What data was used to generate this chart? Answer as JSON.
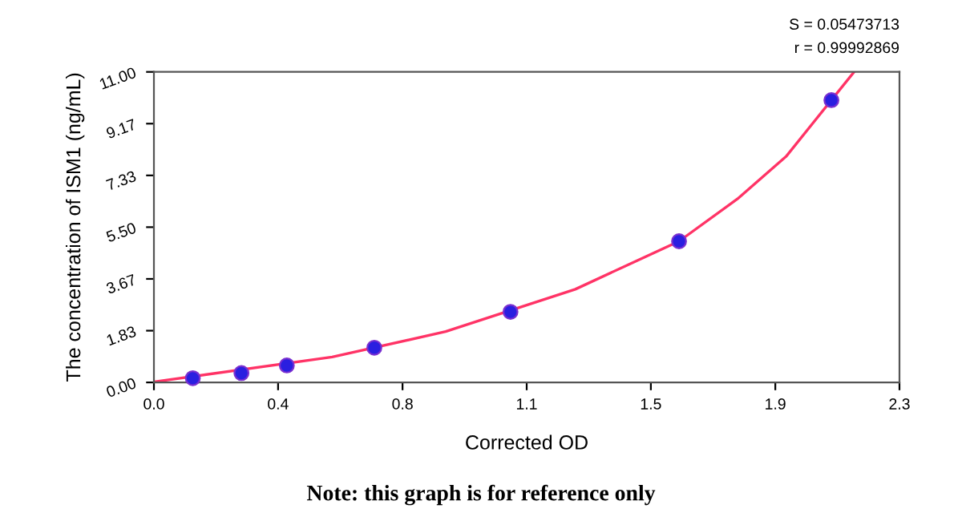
{
  "chart_data": {
    "type": "scatter",
    "xlabel": "Corrected OD",
    "ylabel": "The concentration of ISM1 (ng/mL)",
    "annotations": [
      "S = 0.05473713",
      "r = 0.99992869",
      "Note: this graph is for reference only"
    ],
    "series": [
      {
        "color": "#2a1fe0",
        "marker": "circle",
        "x": [
          0.12,
          0.27,
          0.41,
          0.68,
          1.1,
          1.62,
          2.09
        ],
        "values": [
          0.15,
          0.33,
          0.6,
          1.23,
          2.5,
          5.0,
          10.0
        ]
      },
      {
        "type": "line",
        "color": "#ff3366",
        "marker": "none",
        "line_style": "solid",
        "x": [
          0,
          0.55,
          0.9,
          1.3,
          1.45,
          1.62,
          1.8,
          1.95,
          2.09,
          2.16
        ],
        "values": [
          0.02,
          0.9,
          1.8,
          3.3,
          4.1,
          5.0,
          6.5,
          8.0,
          10.0,
          11.0
        ]
      }
    ],
    "xlim": [
      0,
      2.3
    ],
    "ylim": [
      0,
      11
    ],
    "xticks": [
      {
        "value": 0,
        "label": "0.0"
      },
      {
        "value": 0.383,
        "label": "0.4"
      },
      {
        "value": 0.767,
        "label": "0.8"
      },
      {
        "value": 1.15,
        "label": "1.1"
      },
      {
        "value": 1.533,
        "label": "1.5"
      },
      {
        "value": 1.917,
        "label": "1.9"
      },
      2.3
    ],
    "yticks": [
      {
        "value": 0,
        "label": "0.00"
      },
      {
        "value": 1.833,
        "label": "1.83"
      },
      {
        "value": 3.667,
        "label": "3.67"
      },
      {
        "value": 5.5,
        "label": "5.50"
      },
      {
        "value": 7.333,
        "label": "7.33"
      },
      {
        "value": 9.167,
        "label": "9.17"
      },
      {
        "value": 11,
        "label": "11.00"
      }
    ],
    "grid": false,
    "legend": false
  }
}
